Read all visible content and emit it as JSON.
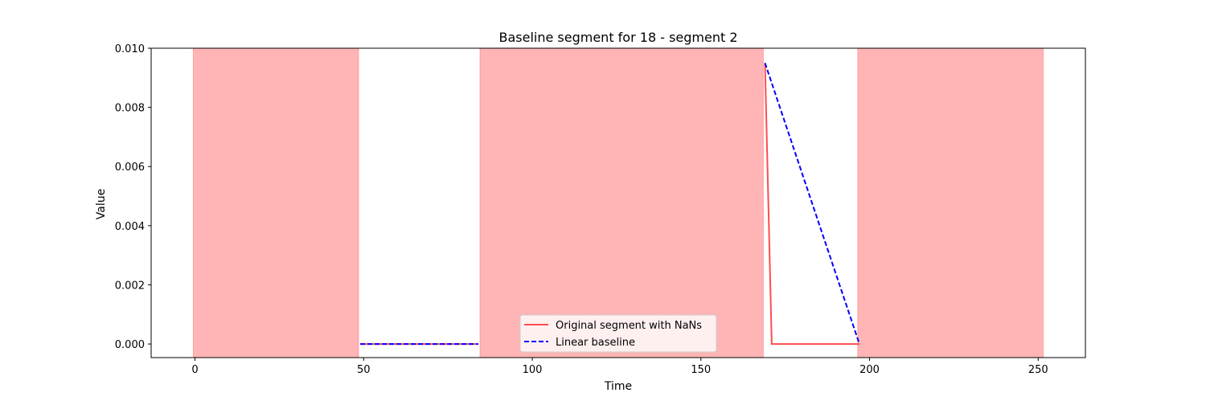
{
  "chart_data": {
    "type": "line",
    "title": "Baseline segment for 18 - segment 2",
    "xlabel": "Time",
    "ylabel": "Value",
    "xlim": [
      -13,
      264
    ],
    "ylim": [
      -0.00046,
      0.01
    ],
    "xticks": [
      0,
      50,
      100,
      150,
      200,
      250
    ],
    "yticks": [
      0.0,
      0.002,
      0.004,
      0.006,
      0.008,
      0.01
    ],
    "xtick_labels": [
      "0",
      "50",
      "100",
      "150",
      "200",
      "250"
    ],
    "ytick_labels": [
      "0.000",
      "0.002",
      "0.004",
      "0.006",
      "0.008",
      "0.010"
    ],
    "grid": false,
    "legend_position": "lower center",
    "shaded_regions": [
      {
        "x_start": -0.5,
        "x_end": 48.5,
        "color": "#ff6b6b"
      },
      {
        "x_start": 84.5,
        "x_end": 168.5,
        "color": "#ff6b6b"
      },
      {
        "x_start": 196.5,
        "x_end": 251.5,
        "color": "#ff6b6b"
      }
    ],
    "series": [
      {
        "name": "Original segment with NaNs",
        "color": "#ff4d4d",
        "style": "solid",
        "segments": [
          {
            "x": [
              49,
              84
            ],
            "y": [
              0.0,
              0.0
            ]
          },
          {
            "x": [
              169,
              171,
              197
            ],
            "y": [
              0.0095,
              0.0,
              0.0
            ]
          }
        ]
      },
      {
        "name": "Linear baseline",
        "color": "#0000ff",
        "style": "dashed",
        "segments": [
          {
            "x": [
              49,
              84
            ],
            "y": [
              0.0,
              0.0
            ]
          },
          {
            "x": [
              169,
              197
            ],
            "y": [
              0.0095,
              0.0
            ]
          }
        ]
      }
    ]
  }
}
